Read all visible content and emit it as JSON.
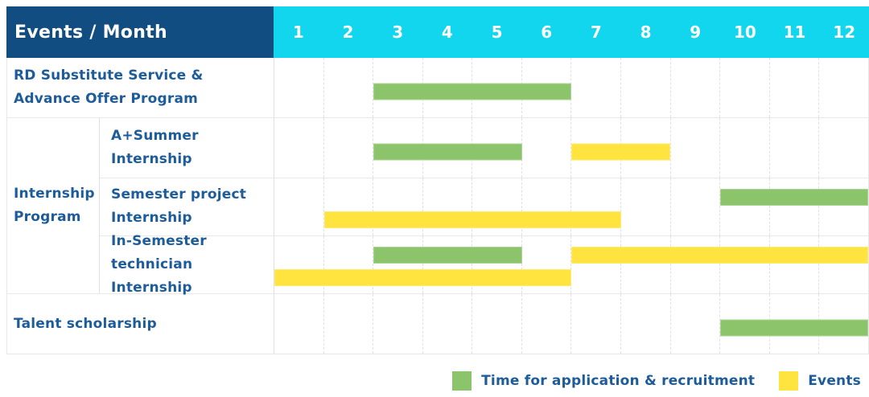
{
  "header": {
    "label": "Events / Month",
    "months": [
      "1",
      "2",
      "3",
      "4",
      "5",
      "6",
      "7",
      "8",
      "9",
      "10",
      "11",
      "12"
    ]
  },
  "colors": {
    "header_bg": "#124d81",
    "month_header_bg": "#12d6ee",
    "label_text": "#1d5c9b",
    "application_green": "#8cc46b",
    "events_yellow": "#ffe33e",
    "grid_line": "#e0e0e0",
    "row_divider": "#e8e8e8",
    "header_text": "#ffffff"
  },
  "chart_data": {
    "type": "gantt",
    "x_unit": "month",
    "x_range": [
      1,
      12
    ],
    "grid": "dashed-vertical",
    "legend_position": "bottom-right",
    "legend": [
      {
        "key": "application",
        "label": "Time for application & recruitment",
        "color": "#8cc46b"
      },
      {
        "key": "events",
        "label": "Events",
        "color": "#ffe33e"
      }
    ],
    "rows": [
      {
        "label": "RD Substitute Service &\nAdvance Offer Program",
        "group": null,
        "bars": [
          {
            "kind": "application",
            "start_month": 3,
            "end_month": 6,
            "lane": 0
          }
        ]
      },
      {
        "label": "A+Summer\nInternship",
        "group": "Internship Program",
        "bars": [
          {
            "kind": "application",
            "start_month": 3,
            "end_month": 5,
            "lane": 0
          },
          {
            "kind": "events",
            "start_month": 7,
            "end_month": 8,
            "lane": 0
          }
        ]
      },
      {
        "label": "Semester project\nInternship",
        "group": "Internship Program",
        "bars": [
          {
            "kind": "application",
            "start_month": 10,
            "end_month": 12,
            "lane": 0
          },
          {
            "kind": "events",
            "start_month": 2,
            "end_month": 7,
            "lane": 1
          }
        ]
      },
      {
        "label": "In-Semester\ntechnician Internship",
        "group": "Internship Program",
        "bars": [
          {
            "kind": "application",
            "start_month": 3,
            "end_month": 5,
            "lane": 0
          },
          {
            "kind": "events",
            "start_month": 7,
            "end_month": 12,
            "lane": 0
          },
          {
            "kind": "events",
            "start_month": 1,
            "end_month": 6,
            "lane": 1
          }
        ]
      },
      {
        "label": "Talent scholarship",
        "group": null,
        "bars": [
          {
            "kind": "application",
            "start_month": 10,
            "end_month": 12,
            "lane": 0
          }
        ]
      }
    ]
  }
}
